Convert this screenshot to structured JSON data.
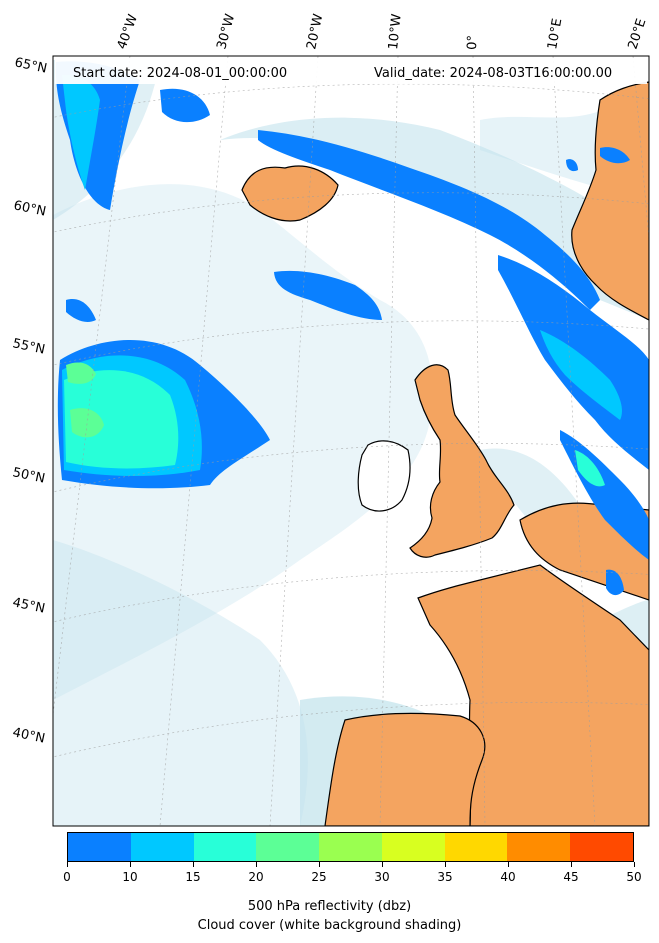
{
  "map": {
    "start_date_label": "Start date: 2024-08-01_00:00:00",
    "valid_date_label": "Valid_date: 2024-08-03T16:00:00.00",
    "longitude_labels": [
      "40°W",
      "30°W",
      "20°W",
      "10°W",
      "0°",
      "10°E",
      "20°E"
    ],
    "latitude_labels": [
      "65°N",
      "60°N",
      "55°N",
      "50°N",
      "45°N",
      "40°N"
    ],
    "colors": {
      "land": "#f4a460",
      "cloud": "#add8e6",
      "coastline": "#000000",
      "gridline": "#9e9e9e"
    }
  },
  "colorbar": {
    "title": "500 hPa reflectivity (dbz)",
    "subtitle": "Cloud cover (white background shading)",
    "ticks": [
      "0",
      "10",
      "15",
      "20",
      "25",
      "30",
      "35",
      "40",
      "45",
      "50"
    ],
    "colors": [
      "#0a80ff",
      "#00c8ff",
      "#28ffd8",
      "#5cff96",
      "#9aff50",
      "#d8ff20",
      "#ffd800",
      "#ff8c00",
      "#ff4a00"
    ]
  }
}
